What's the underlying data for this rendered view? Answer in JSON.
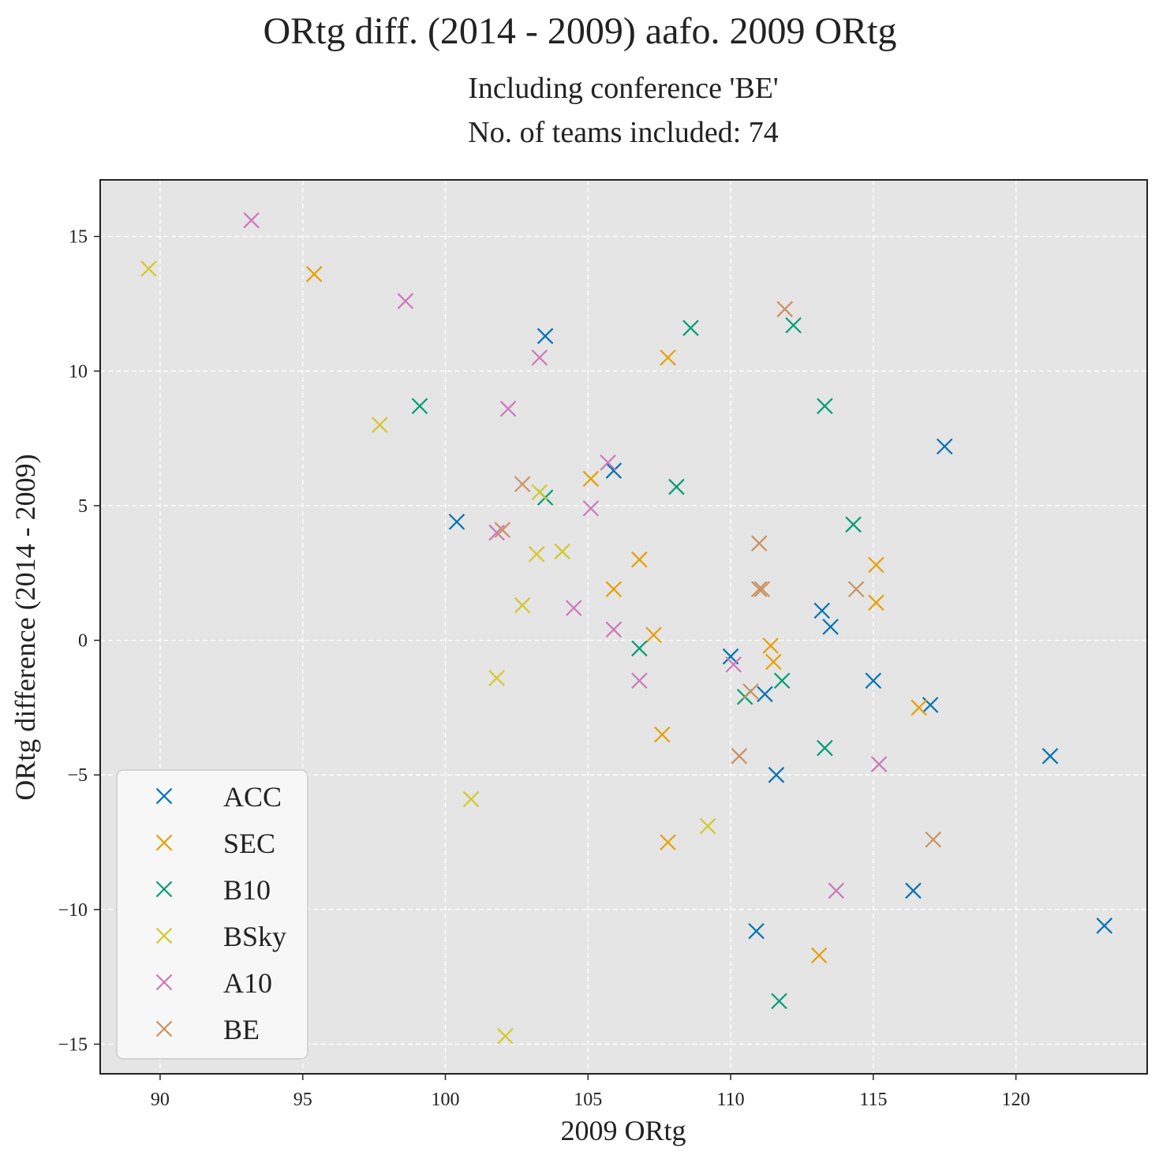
{
  "chart_data": {
    "type": "scatter",
    "title": "ORtg diff. (2014 - 2009) aafo. 2009 ORtg",
    "subtitle_lines": [
      "Including conference 'BE'",
      "No. of teams included: 74"
    ],
    "xlabel": "2009 ORtg",
    "ylabel": "ORtg difference (2014 - 2009)",
    "xlim": [
      87.9,
      124.6
    ],
    "ylim": [
      -16.1,
      17.1
    ],
    "xticks": [
      90,
      95,
      100,
      105,
      110,
      115,
      120
    ],
    "yticks": [
      -15,
      -10,
      -5,
      0,
      5,
      10,
      15
    ],
    "ytick_labels": [
      "−15",
      "−10",
      "−5",
      "0",
      "5",
      "10",
      "15"
    ],
    "grid": true,
    "legend_position": "lower-left",
    "marker": "x",
    "series": [
      {
        "name": "ACC",
        "color": "#0072b2",
        "points": [
          [
            103.5,
            11.3
          ],
          [
            100.4,
            4.4
          ],
          [
            105.9,
            6.3
          ],
          [
            117.5,
            7.2
          ],
          [
            113.2,
            1.1
          ],
          [
            113.5,
            0.5
          ],
          [
            110.0,
            -0.6
          ],
          [
            111.2,
            -2.0
          ],
          [
            115.0,
            -1.5
          ],
          [
            117.0,
            -2.4
          ],
          [
            111.6,
            -5.0
          ],
          [
            121.2,
            -4.3
          ],
          [
            116.4,
            -9.3
          ],
          [
            110.9,
            -10.8
          ],
          [
            123.1,
            -10.6
          ]
        ]
      },
      {
        "name": "SEC",
        "color": "#e69f00",
        "points": [
          [
            95.4,
            13.6
          ],
          [
            107.8,
            10.5
          ],
          [
            105.1,
            6.0
          ],
          [
            106.8,
            3.0
          ],
          [
            105.9,
            1.9
          ],
          [
            107.3,
            0.2
          ],
          [
            115.1,
            2.8
          ],
          [
            115.1,
            1.4
          ],
          [
            111.4,
            -0.2
          ],
          [
            111.5,
            -0.8
          ],
          [
            116.6,
            -2.5
          ],
          [
            107.6,
            -3.5
          ],
          [
            107.8,
            -7.5
          ],
          [
            113.1,
            -11.7
          ]
        ]
      },
      {
        "name": "B10",
        "color": "#009e73",
        "points": [
          [
            108.6,
            11.6
          ],
          [
            112.2,
            11.7
          ],
          [
            99.1,
            8.7
          ],
          [
            113.3,
            8.7
          ],
          [
            103.5,
            5.3
          ],
          [
            108.1,
            5.7
          ],
          [
            114.3,
            4.3
          ],
          [
            106.8,
            -0.3
          ],
          [
            111.8,
            -1.5
          ],
          [
            110.5,
            -2.1
          ],
          [
            113.3,
            -4.0
          ],
          [
            111.7,
            -13.4
          ]
        ]
      },
      {
        "name": "BSky",
        "color": "#d4c82a",
        "points": [
          [
            89.6,
            13.8
          ],
          [
            97.7,
            8.0
          ],
          [
            103.3,
            5.5
          ],
          [
            103.2,
            3.2
          ],
          [
            104.1,
            3.3
          ],
          [
            102.7,
            1.3
          ],
          [
            101.8,
            -1.4
          ],
          [
            100.9,
            -5.9
          ],
          [
            109.2,
            -6.9
          ],
          [
            102.1,
            -14.7
          ]
        ]
      },
      {
        "name": "A10",
        "color": "#cc78bc",
        "points": [
          [
            93.2,
            15.6
          ],
          [
            98.6,
            12.6
          ],
          [
            103.3,
            10.5
          ],
          [
            102.2,
            8.6
          ],
          [
            105.7,
            6.6
          ],
          [
            105.1,
            4.9
          ],
          [
            101.8,
            4.0
          ],
          [
            104.5,
            1.2
          ],
          [
            105.9,
            0.4
          ],
          [
            106.8,
            -1.5
          ],
          [
            110.1,
            -0.9
          ],
          [
            115.2,
            -4.6
          ],
          [
            113.7,
            -9.3
          ]
        ]
      },
      {
        "name": "BE",
        "color": "#ca9161",
        "points": [
          [
            111.9,
            12.3
          ],
          [
            102.7,
            5.8
          ],
          [
            102.0,
            4.1
          ],
          [
            111.0,
            3.6
          ],
          [
            111.0,
            1.9
          ],
          [
            111.1,
            1.9
          ],
          [
            114.4,
            1.9
          ],
          [
            110.7,
            -1.9
          ],
          [
            110.3,
            -4.3
          ],
          [
            117.1,
            -7.4
          ]
        ]
      }
    ]
  }
}
